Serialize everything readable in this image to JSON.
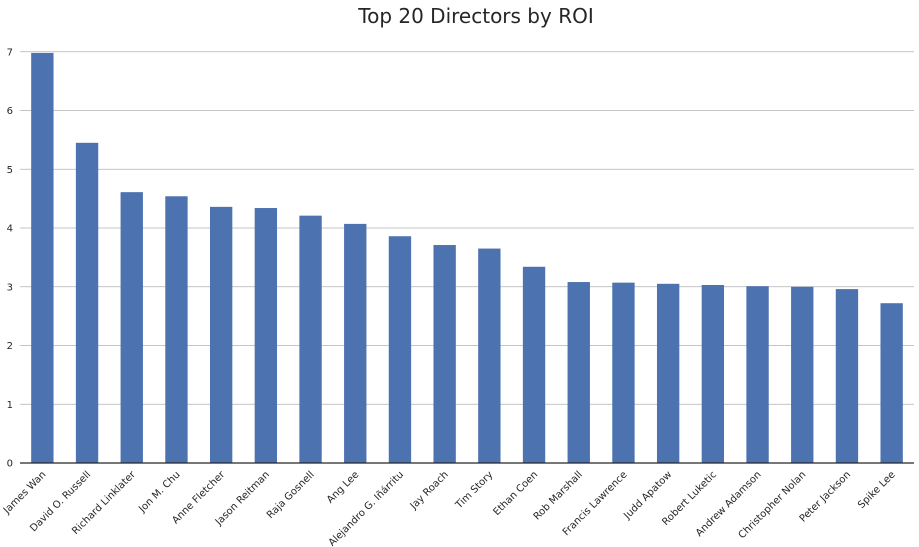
{
  "chart_data": {
    "type": "bar",
    "title": "Top 20 Directors by ROI",
    "xlabel": "",
    "ylabel": "",
    "categories": [
      "James Wan",
      "David O. Russell",
      "Richard Linklater",
      "Jon M. Chu",
      "Anne Fletcher",
      "Jason Reitman",
      "Raja Gosnell",
      "Ang Lee",
      "Alejandro G. Iñárritu",
      "Jay Roach",
      "Tim Story",
      "Ethan Coen",
      "Rob Marshall",
      "Francis Lawrence",
      "Judd Apatow",
      "Robert Luketic",
      "Andrew Adamson",
      "Christopher Nolan",
      "Peter Jackson",
      "Spike Lee"
    ],
    "values": [
      6.98,
      5.45,
      4.61,
      4.54,
      4.36,
      4.34,
      4.21,
      4.07,
      3.86,
      3.71,
      3.65,
      3.34,
      3.08,
      3.07,
      3.05,
      3.03,
      3.01,
      3.0,
      2.96,
      2.72
    ],
    "ylim": [
      0,
      7.2
    ],
    "yticks": [
      "0",
      "1",
      "2",
      "3",
      "4",
      "5",
      "6",
      "7"
    ],
    "grid": true,
    "legend": "none",
    "bar_color": "#4c72b0"
  }
}
